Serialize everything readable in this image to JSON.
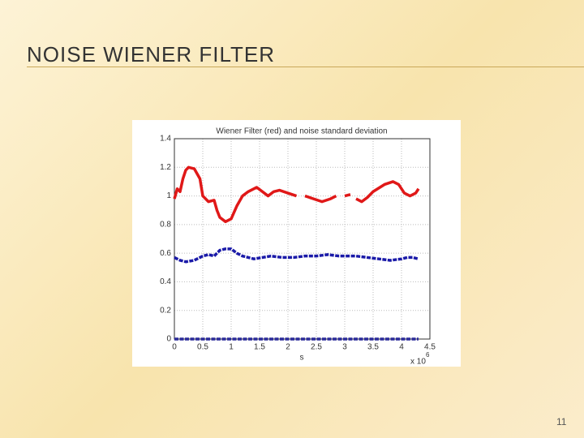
{
  "slide": {
    "title": "NOISE WIENER FILTER",
    "page_number": "11"
  },
  "chart_data": {
    "type": "line",
    "title": "Wiener Filter (red) and noise standard deviation",
    "x_label": "s",
    "x_multiplier": "x 10",
    "x_exponent": "6",
    "xlim": [
      0,
      4.5
    ],
    "xticks": [
      0,
      0.5,
      1,
      1.5,
      2,
      2.5,
      3,
      3.5,
      4,
      4.5
    ],
    "ylim": [
      0,
      1.4
    ],
    "yticks": [
      0,
      0.2,
      0.4,
      0.6,
      0.8,
      1,
      1.2,
      1.4
    ],
    "grid": true,
    "series": [
      {
        "color": "#e01818",
        "style": "solid",
        "x": [
          0,
          0.05,
          0.1,
          0.15,
          0.2,
          0.25,
          0.35,
          0.45,
          0.5,
          0.6,
          0.7,
          0.75,
          0.8,
          0.9,
          1.0,
          1.1,
          1.2,
          1.3,
          1.45,
          1.55,
          1.65,
          1.75,
          1.85,
          2.0,
          2.15,
          2.22,
          2.3,
          2.45,
          2.6,
          2.75,
          2.85,
          2.92,
          3.0,
          3.1,
          3.15,
          3.2,
          3.3,
          3.4,
          3.5,
          3.7,
          3.85,
          3.95,
          4.05,
          4.15,
          4.25,
          4.3
        ],
        "values": [
          0.98,
          1.05,
          1.03,
          1.12,
          1.18,
          1.2,
          1.19,
          1.12,
          1.0,
          0.96,
          0.97,
          0.9,
          0.85,
          0.82,
          0.84,
          0.93,
          1.0,
          1.03,
          1.06,
          1.03,
          1.0,
          1.03,
          1.04,
          1.02,
          1.0,
          null,
          1.0,
          0.98,
          0.96,
          0.98,
          1.0,
          null,
          1.0,
          1.01,
          null,
          0.98,
          0.96,
          0.99,
          1.03,
          1.08,
          1.1,
          1.08,
          1.02,
          1.0,
          1.02,
          1.05
        ]
      },
      {
        "color": "#1a1aa8",
        "style": "dashed",
        "x": [
          0,
          0.1,
          0.2,
          0.35,
          0.5,
          0.6,
          0.7,
          0.8,
          0.9,
          1.0,
          1.1,
          1.2,
          1.4,
          1.55,
          1.7,
          1.9,
          2.1,
          2.3,
          2.5,
          2.7,
          2.9,
          3.0,
          3.2,
          3.4,
          3.6,
          3.8,
          4.0,
          4.1,
          4.2,
          4.3
        ],
        "values": [
          0.57,
          0.55,
          0.54,
          0.55,
          0.58,
          0.59,
          0.58,
          0.62,
          0.63,
          0.63,
          0.6,
          0.58,
          0.56,
          0.57,
          0.58,
          0.57,
          0.57,
          0.58,
          0.58,
          0.59,
          0.58,
          0.58,
          0.58,
          0.57,
          0.56,
          0.55,
          0.56,
          0.57,
          0.57,
          0.56
        ]
      },
      {
        "color": "#2a2a9a",
        "style": "dashed",
        "x": [
          0,
          4.3
        ],
        "values": [
          0,
          0
        ]
      }
    ]
  }
}
